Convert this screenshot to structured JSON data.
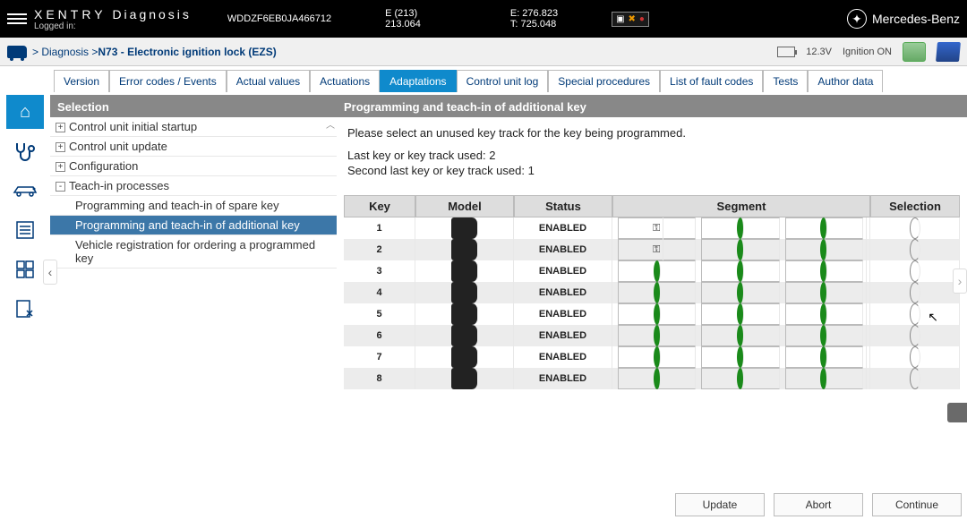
{
  "top": {
    "brand1": "XENTRY",
    "brand2": "Diagnosis",
    "logged": "Logged in:",
    "vin": "WDDZF6EB0JA466712",
    "e213a": "E (213)",
    "e213b": "213.064",
    "e276a": "E: 276.823",
    "e276b": "T: 725.048",
    "mb": "Mercedes-Benz"
  },
  "crumb": {
    "path": "> Diagnosis > ",
    "node": "N73 - Electronic ignition lock (EZS)",
    "volt": "12.3V",
    "ign": "Ignition ON"
  },
  "tabs": [
    "Version",
    "Error codes / Events",
    "Actual values",
    "Actuations",
    "Adaptations",
    "Control unit log",
    "Special procedures",
    "List of fault codes",
    "Tests",
    "Author data"
  ],
  "active_tab": 4,
  "tree": {
    "header": "Selection",
    "items": [
      {
        "exp": "+",
        "label": "Control unit initial startup"
      },
      {
        "exp": "+",
        "label": "Control unit update"
      },
      {
        "exp": "+",
        "label": "Configuration"
      },
      {
        "exp": "-",
        "label": "Teach-in processes"
      },
      {
        "sub": true,
        "label": "Programming and teach-in of spare key"
      },
      {
        "sub": true,
        "sel": true,
        "label": "Programming and teach-in of additional key"
      },
      {
        "sub": true,
        "label": "Vehicle registration for ordering a programmed key"
      }
    ]
  },
  "panel": {
    "header": "Programming and teach-in of additional key",
    "line1": "Please select an unused key track for the key being programmed.",
    "line2": "Last key or key track used: 2",
    "line3": "Second last key or key track used: 1"
  },
  "kt": {
    "h_key": "Key",
    "h_model": "Model",
    "h_status": "Status",
    "h_segment": "Segment",
    "h_selection": "Selection",
    "rows": [
      {
        "k": "1",
        "status": "ENABLED",
        "seg": [
          "key",
          "dot",
          "dot"
        ]
      },
      {
        "k": "2",
        "status": "ENABLED",
        "seg": [
          "key",
          "dot",
          "dot"
        ]
      },
      {
        "k": "3",
        "status": "ENABLED",
        "seg": [
          "dot",
          "dot",
          "dot"
        ]
      },
      {
        "k": "4",
        "status": "ENABLED",
        "seg": [
          "dot",
          "dot",
          "dot"
        ]
      },
      {
        "k": "5",
        "status": "ENABLED",
        "seg": [
          "dot",
          "dot",
          "dot"
        ]
      },
      {
        "k": "6",
        "status": "ENABLED",
        "seg": [
          "dot",
          "dot",
          "dot"
        ]
      },
      {
        "k": "7",
        "status": "ENABLED",
        "seg": [
          "dot",
          "dot",
          "dot"
        ]
      },
      {
        "k": "8",
        "status": "ENABLED",
        "seg": [
          "dot",
          "dot",
          "dot"
        ]
      }
    ]
  },
  "btns": {
    "update": "Update",
    "abort": "Abort",
    "continue": "Continue"
  }
}
